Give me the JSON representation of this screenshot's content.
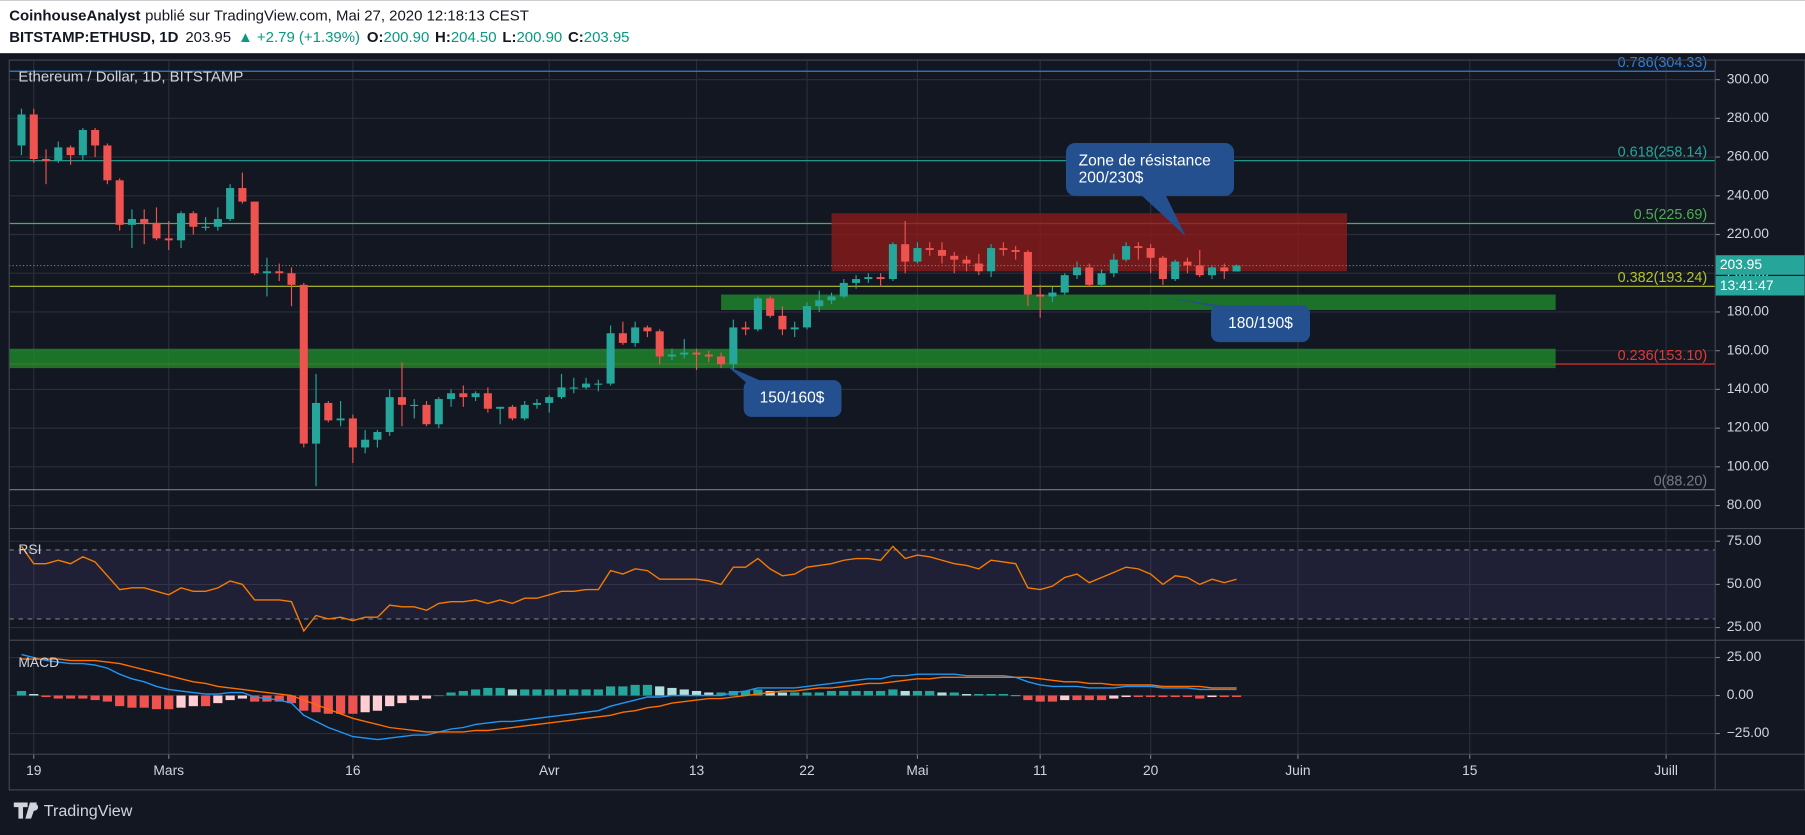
{
  "header": {
    "author": "CoinhouseAnalyst",
    "published": "publié sur TradingView.com, Mai 27, 2020 12:18:13 CEST",
    "symbol": "BITSTAMP:ETHUSD, 1D",
    "last": "203.95",
    "change": "▲ +2.79 (+1.39%)",
    "ohlc": [
      {
        "label": "O:",
        "value": "200.90"
      },
      {
        "label": "H:",
        "value": "204.50"
      },
      {
        "label": "L:",
        "value": "200.90"
      },
      {
        "label": "C:",
        "value": "203.95"
      }
    ]
  },
  "footer": {
    "brand": "TradingView"
  },
  "chart_data": {
    "type": "candlestick",
    "title": "Ethereum / Dollar, 1D, BITSTAMP",
    "up_color": "#26a69a",
    "down_color": "#ef5350",
    "xlim": [
      "2020-02-17",
      "2020-07-05"
    ],
    "xticks": [
      {
        "value": "2020-02-19",
        "label": "19"
      },
      {
        "value": "2020-03-01",
        "label": "Mars"
      },
      {
        "value": "2020-03-16",
        "label": "16"
      },
      {
        "value": "2020-04-01",
        "label": "Avr"
      },
      {
        "value": "2020-04-13",
        "label": "13"
      },
      {
        "value": "2020-04-22",
        "label": "22"
      },
      {
        "value": "2020-05-01",
        "label": "Mai"
      },
      {
        "value": "2020-05-11",
        "label": "11"
      },
      {
        "value": "2020-05-20",
        "label": "20"
      },
      {
        "value": "2020-06-01",
        "label": "Juin"
      },
      {
        "value": "2020-06-15",
        "label": "15"
      },
      {
        "value": "2020-07-01",
        "label": "Juill"
      }
    ],
    "ylim": [
      68.7,
      310.1
    ],
    "yticks": [
      {
        "value": 80,
        "label": "80.00"
      },
      {
        "value": 100,
        "label": "100.00"
      },
      {
        "value": 120,
        "label": "120.00"
      },
      {
        "value": 140,
        "label": "140.00"
      },
      {
        "value": 160,
        "label": "160.00"
      },
      {
        "value": 180,
        "label": "180.00"
      },
      {
        "value": 200,
        "label": "200.00"
      },
      {
        "value": 220,
        "label": "220.00"
      },
      {
        "value": 240,
        "label": "240.00"
      },
      {
        "value": 260,
        "label": "260.00"
      },
      {
        "value": 280,
        "label": "280.00"
      },
      {
        "value": 300,
        "label": "300.00"
      }
    ],
    "grid": true,
    "dates": [
      "2020-02-18",
      "2020-02-19",
      "2020-02-20",
      "2020-02-21",
      "2020-02-22",
      "2020-02-23",
      "2020-02-24",
      "2020-02-25",
      "2020-02-26",
      "2020-02-27",
      "2020-02-28",
      "2020-02-29",
      "2020-03-01",
      "2020-03-02",
      "2020-03-03",
      "2020-03-04",
      "2020-03-05",
      "2020-03-06",
      "2020-03-07",
      "2020-03-08",
      "2020-03-09",
      "2020-03-10",
      "2020-03-11",
      "2020-03-12",
      "2020-03-13",
      "2020-03-14",
      "2020-03-15",
      "2020-03-16",
      "2020-03-17",
      "2020-03-18",
      "2020-03-19",
      "2020-03-20",
      "2020-03-21",
      "2020-03-22",
      "2020-03-23",
      "2020-03-24",
      "2020-03-25",
      "2020-03-26",
      "2020-03-27",
      "2020-03-28",
      "2020-03-29",
      "2020-03-30",
      "2020-03-31",
      "2020-04-01",
      "2020-04-02",
      "2020-04-03",
      "2020-04-04",
      "2020-04-05",
      "2020-04-06",
      "2020-04-07",
      "2020-04-08",
      "2020-04-09",
      "2020-04-10",
      "2020-04-11",
      "2020-04-12",
      "2020-04-13",
      "2020-04-14",
      "2020-04-15",
      "2020-04-16",
      "2020-04-17",
      "2020-04-18",
      "2020-04-19",
      "2020-04-20",
      "2020-04-21",
      "2020-04-22",
      "2020-04-23",
      "2020-04-24",
      "2020-04-25",
      "2020-04-26",
      "2020-04-27",
      "2020-04-28",
      "2020-04-29",
      "2020-04-30",
      "2020-05-01",
      "2020-05-02",
      "2020-05-03",
      "2020-05-04",
      "2020-05-05",
      "2020-05-06",
      "2020-05-07",
      "2020-05-08",
      "2020-05-09",
      "2020-05-10",
      "2020-05-11",
      "2020-05-12",
      "2020-05-13",
      "2020-05-14",
      "2020-05-15",
      "2020-05-16",
      "2020-05-17",
      "2020-05-18",
      "2020-05-19",
      "2020-05-20",
      "2020-05-21",
      "2020-05-22",
      "2020-05-23",
      "2020-05-24",
      "2020-05-25",
      "2020-05-26",
      "2020-05-27"
    ],
    "candles": [
      [
        266,
        285,
        261,
        282
      ],
      [
        282,
        285,
        257,
        259
      ],
      [
        259,
        264,
        246,
        258
      ],
      [
        258,
        268,
        257,
        265
      ],
      [
        265,
        266,
        256,
        261
      ],
      [
        261,
        275,
        258,
        274
      ],
      [
        274,
        275,
        260,
        266
      ],
      [
        266,
        267,
        246,
        248
      ],
      [
        248,
        249,
        222,
        225
      ],
      [
        225,
        233,
        213,
        228
      ],
      [
        228,
        233,
        215,
        226
      ],
      [
        226,
        234,
        217,
        218
      ],
      [
        218,
        227,
        212,
        217
      ],
      [
        217,
        232,
        213,
        231
      ],
      [
        231,
        232,
        220,
        224
      ],
      [
        224,
        229,
        222,
        224
      ],
      [
        224,
        234,
        222,
        228
      ],
      [
        228,
        246,
        227,
        244
      ],
      [
        244,
        252,
        236,
        237
      ],
      [
        237,
        237,
        199,
        200
      ],
      [
        200,
        208,
        188,
        201
      ],
      [
        201,
        205,
        196,
        200
      ],
      [
        200,
        203,
        183,
        194
      ],
      [
        194,
        195,
        110,
        112
      ],
      [
        112,
        148,
        90,
        133
      ],
      [
        133,
        134,
        123,
        124
      ],
      [
        124,
        134,
        121,
        125
      ],
      [
        125,
        127,
        102,
        110
      ],
      [
        110,
        119,
        107,
        114
      ],
      [
        114,
        119,
        110,
        118
      ],
      [
        118,
        140,
        116,
        136
      ],
      [
        136,
        154,
        121,
        132
      ],
      [
        132,
        135,
        125,
        132
      ],
      [
        132,
        134,
        121,
        122
      ],
      [
        122,
        136,
        120,
        135
      ],
      [
        135,
        140,
        131,
        138
      ],
      [
        138,
        142,
        131,
        136
      ],
      [
        136,
        139,
        134,
        138
      ],
      [
        138,
        141,
        128,
        130
      ],
      [
        130,
        131,
        122,
        131
      ],
      [
        131,
        132,
        124,
        125
      ],
      [
        125,
        134,
        124,
        132
      ],
      [
        132,
        135,
        130,
        133
      ],
      [
        133,
        137,
        128,
        136
      ],
      [
        136,
        148,
        135,
        141
      ],
      [
        141,
        146,
        138,
        141
      ],
      [
        141,
        146,
        140,
        143
      ],
      [
        143,
        145,
        139,
        143
      ],
      [
        143,
        173,
        142,
        169
      ],
      [
        169,
        175,
        163,
        164
      ],
      [
        164,
        175,
        162,
        172
      ],
      [
        172,
        173,
        167,
        170
      ],
      [
        170,
        171,
        153,
        157
      ],
      [
        157,
        161,
        155,
        158
      ],
      [
        158,
        166,
        156,
        159
      ],
      [
        159,
        161,
        150,
        158
      ],
      [
        158,
        160,
        154,
        157
      ],
      [
        157,
        159,
        151,
        153
      ],
      [
        153,
        176,
        150,
        172
      ],
      [
        172,
        175,
        168,
        171
      ],
      [
        171,
        188,
        170,
        187
      ],
      [
        187,
        188,
        177,
        178
      ],
      [
        178,
        183,
        168,
        171
      ],
      [
        171,
        175,
        167,
        172
      ],
      [
        172,
        185,
        171,
        183
      ],
      [
        183,
        191,
        180,
        186
      ],
      [
        186,
        190,
        184,
        188
      ],
      [
        188,
        197,
        187,
        195
      ],
      [
        195,
        199,
        192,
        197
      ],
      [
        197,
        200,
        195,
        198
      ],
      [
        198,
        200,
        193,
        197
      ],
      [
        197,
        216,
        196,
        215
      ],
      [
        215,
        227,
        200,
        206
      ],
      [
        206,
        216,
        205,
        213
      ],
      [
        213,
        216,
        209,
        212
      ],
      [
        212,
        216,
        205,
        209
      ],
      [
        209,
        211,
        200,
        207
      ],
      [
        207,
        209,
        201,
        205
      ],
      [
        205,
        210,
        199,
        201
      ],
      [
        201,
        215,
        198,
        213
      ],
      [
        213,
        216,
        209,
        212
      ],
      [
        212,
        214,
        207,
        211
      ],
      [
        211,
        212,
        183,
        189
      ],
      [
        189,
        194,
        177,
        188
      ],
      [
        188,
        193,
        185,
        190
      ],
      [
        190,
        200,
        189,
        199
      ],
      [
        199,
        206,
        197,
        203
      ],
      [
        203,
        205,
        193,
        194
      ],
      [
        194,
        202,
        193,
        200
      ],
      [
        200,
        210,
        198,
        207
      ],
      [
        207,
        216,
        206,
        214
      ],
      [
        214,
        216,
        207,
        213
      ],
      [
        213,
        215,
        200,
        208
      ],
      [
        208,
        209,
        194,
        197
      ],
      [
        197,
        207,
        196,
        206
      ],
      [
        206,
        208,
        200,
        204
      ],
      [
        204,
        212,
        198,
        199
      ],
      [
        199,
        204,
        197,
        203
      ],
      [
        203,
        205,
        197,
        201
      ],
      [
        200.9,
        204.5,
        200.9,
        203.95
      ]
    ],
    "fib_levels": [
      {
        "label": "0.786(304.33)",
        "value": 304.33,
        "color": "#2f7fd8"
      },
      {
        "label": "0.618(258.14)",
        "value": 258.14,
        "color": "#26a69a"
      },
      {
        "label": "0.5(225.69)",
        "value": 225.69,
        "color": "#4caf50"
      },
      {
        "label": "0.382(193.24)",
        "value": 193.24,
        "color": "#b5c22c"
      },
      {
        "label": "0.236(153.10)",
        "value": 153.1,
        "color": "#e53935"
      },
      {
        "label": "0(88.20)",
        "value": 88.2,
        "color": "#787b86"
      }
    ],
    "zones": [
      {
        "from": "2020-04-24",
        "to": "2020-06-05",
        "low": 201,
        "high": 231,
        "color": "#8b1a1a"
      },
      {
        "from": "2020-04-15",
        "to": "2020-06-22",
        "low": 181,
        "high": 189,
        "color": "#1f8a2a"
      },
      {
        "from": "2020-02-17",
        "to": "2020-06-22",
        "low": 151,
        "high": 161,
        "color": "#1f8a2a"
      }
    ],
    "annotations": [
      {
        "lines": [
          "Zone de résistance",
          "200/230$"
        ]
      },
      {
        "lines": [
          "180/190$"
        ]
      },
      {
        "lines": [
          "150/160$"
        ]
      }
    ],
    "price_tag": {
      "value": 203.95,
      "label": "203.95",
      "countdown": "13:41:47"
    },
    "rsi": {
      "name": "RSI",
      "color": "#f57c00",
      "band": [
        30,
        70
      ],
      "ylim": [
        18.3,
        81.7
      ],
      "yticks": [
        {
          "value": 25,
          "label": "25.00"
        },
        {
          "value": 50,
          "label": "50.00"
        },
        {
          "value": 75,
          "label": "75.00"
        }
      ],
      "values": [
        72,
        62,
        62,
        64,
        62,
        66,
        63,
        55,
        47,
        48,
        48,
        46,
        44,
        48,
        46,
        46,
        48,
        52,
        50,
        41,
        41,
        41,
        40,
        23,
        32,
        30,
        31,
        29,
        31,
        31,
        38,
        37,
        37,
        35,
        39,
        40,
        40,
        41,
        39,
        41,
        39,
        42,
        42,
        44,
        46,
        46,
        47,
        47,
        58,
        56,
        59,
        58,
        53,
        53,
        53,
        53,
        52,
        50,
        60,
        60,
        65,
        59,
        55,
        56,
        60,
        61,
        62,
        64,
        65,
        65,
        64,
        72,
        65,
        67,
        66,
        64,
        62,
        61,
        59,
        64,
        63,
        62,
        48,
        47,
        49,
        54,
        56,
        51,
        54,
        57,
        60,
        59,
        56,
        50,
        55,
        54,
        50,
        53,
        51,
        53
      ]
    },
    "macd": {
      "name": "MACD",
      "ylim": [
        -38.6,
        35.6
      ],
      "yticks": [
        {
          "value": -25,
          "label": "−25.00"
        },
        {
          "value": 0,
          "label": "0.00"
        },
        {
          "value": 25,
          "label": "25.00"
        }
      ],
      "macd_color": "#2196f3",
      "signal_color": "#ff6d00",
      "hist_colors": [
        "#26a69a",
        "#b2dfdb",
        "#ffcdd2",
        "#ef5350"
      ],
      "macd": [
        27,
        25,
        23,
        22,
        21,
        21,
        20,
        18,
        14,
        11,
        9,
        6,
        4,
        3,
        2,
        1,
        1,
        2,
        2,
        -1,
        -2,
        -3,
        -5,
        -13,
        -17,
        -21,
        -24,
        -27,
        -28,
        -29,
        -28,
        -27,
        -26,
        -26,
        -24,
        -22,
        -21,
        -19,
        -18,
        -17,
        -17,
        -16,
        -15,
        -14,
        -13,
        -12,
        -11,
        -10,
        -7,
        -5,
        -3,
        -1,
        -1,
        0,
        0,
        0,
        0,
        0,
        2,
        3,
        5,
        5,
        5,
        5,
        6,
        7,
        8,
        9,
        10,
        11,
        11,
        13,
        13,
        14,
        14,
        14,
        14,
        13,
        13,
        13,
        13,
        12,
        9,
        7,
        6,
        6,
        6,
        5,
        5,
        5,
        6,
        6,
        6,
        5,
        5,
        5,
        4,
        4,
        4,
        4
      ],
      "signal": [
        24,
        24,
        24,
        24,
        23,
        23,
        23,
        22,
        21,
        19,
        17,
        15,
        13,
        11,
        9,
        8,
        6,
        5,
        4,
        3,
        2,
        1,
        0,
        -3,
        -6,
        -9,
        -12,
        -15,
        -17,
        -19,
        -21,
        -22,
        -23,
        -24,
        -24,
        -24,
        -24,
        -23,
        -23,
        -22,
        -21,
        -20,
        -19,
        -18,
        -17,
        -16,
        -15,
        -14,
        -13,
        -11,
        -10,
        -8,
        -7,
        -5,
        -4,
        -3,
        -2,
        -2,
        -1,
        0,
        1,
        2,
        3,
        3,
        4,
        5,
        5,
        6,
        7,
        8,
        8,
        9,
        10,
        11,
        11,
        12,
        12,
        12,
        12,
        12,
        12,
        12,
        12,
        11,
        10,
        9,
        9,
        8,
        8,
        7,
        7,
        7,
        7,
        6,
        6,
        6,
        6,
        5,
        5,
        5
      ],
      "histogram": [
        3,
        1,
        -1,
        -2,
        -2,
        -2,
        -3,
        -4,
        -7,
        -8,
        -8,
        -9,
        -9,
        -8,
        -7,
        -7,
        -5,
        -3,
        -2,
        -4,
        -4,
        -4,
        -5,
        -10,
        -11,
        -12,
        -12,
        -12,
        -11,
        -10,
        -7,
        -5,
        -3,
        -2,
        0,
        2,
        3,
        4,
        5,
        5,
        4,
        4,
        4,
        4,
        4,
        4,
        4,
        4,
        6,
        6,
        7,
        7,
        6,
        5,
        4,
        3,
        2,
        2,
        3,
        3,
        4,
        3,
        2,
        2,
        2,
        2,
        3,
        3,
        3,
        3,
        3,
        4,
        3,
        3,
        3,
        2,
        2,
        1,
        1,
        1,
        1,
        0,
        -3,
        -4,
        -4,
        -3,
        -3,
        -3,
        -3,
        -2,
        -1,
        -1,
        -1,
        -1,
        -1,
        -1,
        -2,
        -1,
        -1,
        -1
      ]
    }
  }
}
